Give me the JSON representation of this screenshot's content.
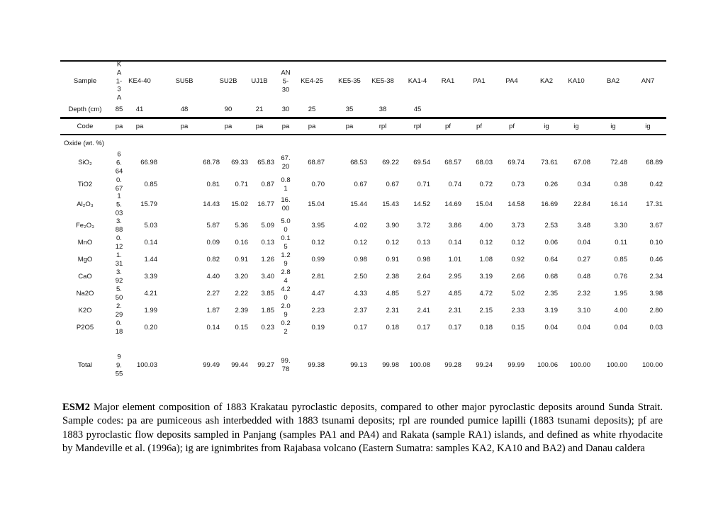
{
  "table": {
    "header_label": "Sample",
    "depth_label": "Depth (cm)",
    "code_label": "Code",
    "oxide_label": "Oxide (wt. %)",
    "samples": [
      "K\nA\n1-\n3\nA",
      "KE4-40",
      "SU5B",
      "SU2B",
      "UJ1B",
      "AN\n5-\n30",
      "KE4-25",
      "KE5-35",
      "KE5-38",
      "KA1-4",
      "RA1",
      "PA1",
      "PA4",
      "KA2",
      "KA10",
      "BA2",
      "AN7"
    ],
    "depths": [
      "85",
      "41",
      "48",
      "90",
      "21",
      "30",
      "25",
      "35",
      "38",
      "45",
      "",
      "",
      "",
      "",
      "",
      "",
      ""
    ],
    "codes": [
      "pa",
      "pa",
      "pa",
      "pa",
      "pa",
      "pa",
      "pa",
      "pa",
      "rpl",
      "rpl",
      "pf",
      "pf",
      "pf",
      "ig",
      "ig",
      "ig",
      "ig"
    ],
    "rows": [
      {
        "label": "SiO₂",
        "values": [
          "6\n6.\n64",
          "66.98",
          "68.78",
          "69.33",
          "65.83",
          "67.\n20",
          "68.87",
          "68.53",
          "69.22",
          "69.54",
          "68.57",
          "68.03",
          "69.74",
          "73.61",
          "67.08",
          "72.48",
          "68.89"
        ]
      },
      {
        "label": "TiO2",
        "values": [
          "0.\n67",
          "0.85",
          "0.81",
          "0.71",
          "0.87",
          "0.8\n1",
          "0.70",
          "0.67",
          "0.67",
          "0.71",
          "0.74",
          "0.72",
          "0.73",
          "0.26",
          "0.34",
          "0.38",
          "0.42"
        ]
      },
      {
        "label": "Al₂O₃",
        "values": [
          "1\n5.\n03",
          "15.79",
          "14.43",
          "15.02",
          "16.77",
          "16.\n00",
          "15.04",
          "15.44",
          "15.43",
          "14.52",
          "14.69",
          "15.04",
          "14.58",
          "16.69",
          "22.84",
          "16.14",
          "17.31"
        ]
      },
      {
        "label": "Fe₂O₃",
        "values": [
          "3.\n88",
          "5.03",
          "5.87",
          "5.36",
          "5.09",
          "5.0\n0",
          "3.95",
          "4.02",
          "3.90",
          "3.72",
          "3.86",
          "4.00",
          "3.73",
          "2.53",
          "3.48",
          "3.30",
          "3.67"
        ]
      },
      {
        "label": "MnO",
        "values": [
          "0.\n12",
          "0.14",
          "0.09",
          "0.16",
          "0.13",
          "0.1\n5",
          "0.12",
          "0.12",
          "0.12",
          "0.13",
          "0.14",
          "0.12",
          "0.12",
          "0.06",
          "0.04",
          "0.11",
          "0.10"
        ]
      },
      {
        "label": "MgO",
        "values": [
          "1.\n31",
          "1.44",
          "0.82",
          "0.91",
          "1.26",
          "1.2\n9",
          "0.99",
          "0.98",
          "0.91",
          "0.98",
          "1.01",
          "1.08",
          "0.92",
          "0.64",
          "0.27",
          "0.85",
          "0.46"
        ]
      },
      {
        "label": "CaO",
        "values": [
          "3.\n92",
          "3.39",
          "4.40",
          "3.20",
          "3.40",
          "2.8\n4",
          "2.81",
          "2.50",
          "2.38",
          "2.64",
          "2.95",
          "3.19",
          "2.66",
          "0.68",
          "0.48",
          "0.76",
          "2.34"
        ]
      },
      {
        "label": "Na2O",
        "values": [
          "5.\n50",
          "4.21",
          "2.27",
          "2.22",
          "3.85",
          "4.2\n0",
          "4.47",
          "4.33",
          "4.85",
          "5.27",
          "4.85",
          "4.72",
          "5.02",
          "2.35",
          "2.32",
          "1.95",
          "3.98"
        ]
      },
      {
        "label": "K2O",
        "values": [
          "2.\n29",
          "1.99",
          "1.87",
          "2.39",
          "1.85",
          "2.0\n9",
          "2.23",
          "2.37",
          "2.31",
          "2.41",
          "2.31",
          "2.15",
          "2.33",
          "3.19",
          "3.10",
          "4.00",
          "2.80"
        ]
      },
      {
        "label": "P2O5",
        "values": [
          "0.\n18",
          "0.20",
          "0.14",
          "0.15",
          "0.23",
          "0.2\n2",
          "0.19",
          "0.17",
          "0.18",
          "0.17",
          "0.17",
          "0.18",
          "0.15",
          "0.04",
          "0.04",
          "0.04",
          "0.03"
        ]
      },
      {
        "label": "Total",
        "values": [
          "9\n9.\n55",
          "100.03",
          "99.49",
          "99.44",
          "99.27",
          "99.\n78",
          "99.38",
          "99.13",
          "99.98",
          "100.08",
          "99.28",
          "99.24",
          "99.99",
          "100.06",
          "100.00",
          "100.00",
          "100.00"
        ]
      }
    ]
  },
  "caption": {
    "label": "ESM2",
    "text": "Major element composition of 1883 Krakatau pyroclastic deposits, compared to other major pyroclastic deposits around Sunda Strait. Sample codes: pa are pumiceous ash interbedded with 1883 tsunami deposits; rpl are rounded pumice lapilli (1883 tsunami deposits); pf are 1883 pyroclastic flow deposits sampled in Panjang (samples PA1 and PA4) and Rakata (sample RA1) islands, and defined as white rhyodacite by Mandeville et al. (1996a); ig are ignimbrites from Rajabasa volcano (Eastern Sumatra: samples KA2, KA10 and BA2) and Danau caldera"
  }
}
